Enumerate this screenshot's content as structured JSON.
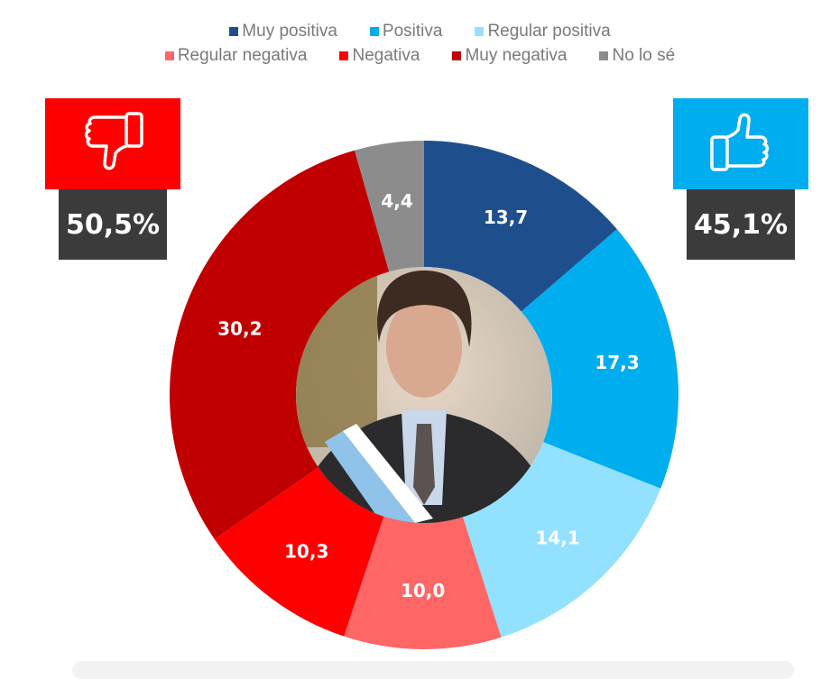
{
  "legend": {
    "row1": [
      {
        "label": "Muy positiva",
        "color": "#1f4e8c"
      },
      {
        "label": "Positiva",
        "color": "#00adef"
      },
      {
        "label": "Regular positiva",
        "color": "#92e1ff"
      }
    ],
    "row2": [
      {
        "label": "Regular negativa",
        "color": "#ff6666"
      },
      {
        "label": "Negativa",
        "color": "#ff0000"
      },
      {
        "label": "Muy negativa",
        "color": "#c00000"
      },
      {
        "label": "No lo sé",
        "color": "#8c8c8c"
      }
    ]
  },
  "negative_badge": {
    "icon": "thumbs-down-icon",
    "value": "50,5%",
    "color": "#ff0000"
  },
  "positive_badge": {
    "icon": "thumbs-up-icon",
    "value": "45,1%",
    "color": "#00adef"
  },
  "chart_data": {
    "type": "pie",
    "subtype": "donut",
    "title": "",
    "start_angle": "12 o'clock, clockwise",
    "categories": [
      "Muy positiva",
      "Positiva",
      "Regular positiva",
      "Regular negativa",
      "Negativa",
      "Muy negativa",
      "No lo sé"
    ],
    "values": [
      13.7,
      17.3,
      14.1,
      10.0,
      10.3,
      30.2,
      4.4
    ],
    "labels": [
      "13,7",
      "17,3",
      "14,1",
      "10,0",
      "10,3",
      "30,2",
      "4,4"
    ],
    "colors": [
      "#1f4e8c",
      "#00adef",
      "#92e1ff",
      "#ff6666",
      "#ff0000",
      "#c00000",
      "#8c8c8c"
    ],
    "totals": {
      "negative": "50,5%",
      "positive": "45,1%"
    },
    "center_image": "portrait photo",
    "legend_position": "top"
  }
}
